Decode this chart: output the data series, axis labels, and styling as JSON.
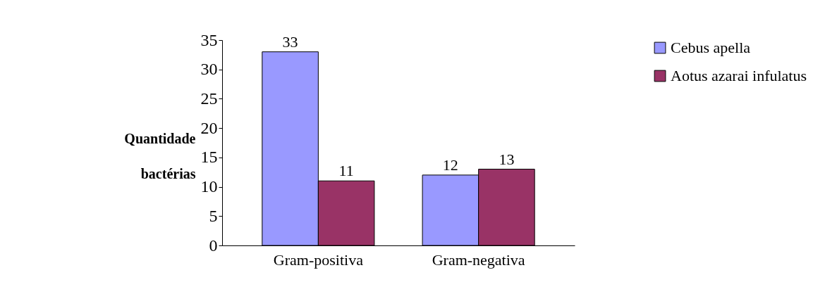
{
  "chart_data": {
    "type": "bar",
    "ylabel": "Quantidade bactérias",
    "categories": [
      "Gram-positiva",
      "Gram-negativa"
    ],
    "series": [
      {
        "name": "Cebus apella",
        "color": "#9999ff",
        "values": [
          33,
          12
        ]
      },
      {
        "name": "Aotus azarai infulatus",
        "color": "#993366",
        "values": [
          11,
          13
        ]
      }
    ],
    "ylim": [
      0,
      35
    ],
    "yticks": [
      0,
      5,
      10,
      15,
      20,
      25,
      30,
      35
    ],
    "grid": false,
    "legend": "right",
    "data_labels": true
  }
}
